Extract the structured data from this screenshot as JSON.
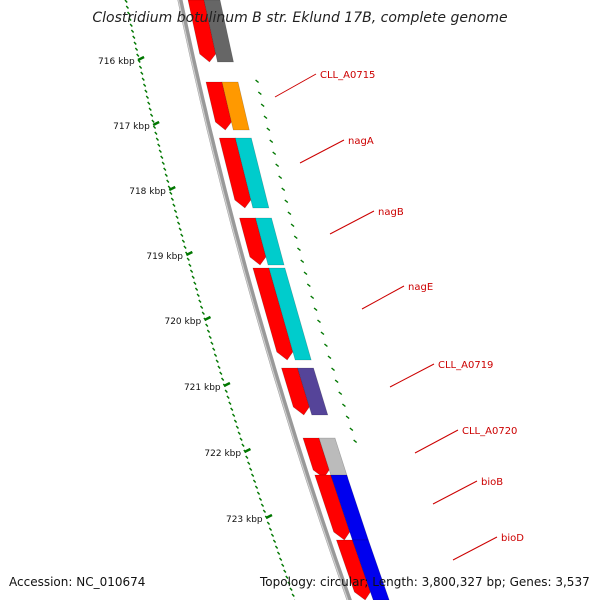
{
  "header": {
    "title": "Clostridium botulinum B str. Eklund 17B, complete genome"
  },
  "footer": {
    "accession_label": "Accession:",
    "accession": "NC_010674",
    "topology_label": "Topology:",
    "topology": "circular",
    "length_label": "Length:",
    "length": "3,800,327 bp",
    "genes_label": "Genes:",
    "genes": "3,537"
  },
  "scale": {
    "ticks": [
      {
        "label": "716 kbp",
        "kbp": 716
      },
      {
        "label": "717 kbp",
        "kbp": 717
      },
      {
        "label": "718 kbp",
        "kbp": 718
      },
      {
        "label": "719 kbp",
        "kbp": 719
      },
      {
        "label": "720 kbp",
        "kbp": 720
      },
      {
        "label": "721 kbp",
        "kbp": 721
      },
      {
        "label": "722 kbp",
        "kbp": 722
      },
      {
        "label": "723 kbp",
        "kbp": 723
      }
    ]
  },
  "colors": {
    "backbone": "#999999",
    "cds_red": "#ff0000",
    "orange": "#ff9900",
    "cyan": "#00cccc",
    "purple": "#554499",
    "gray_light": "#bbbbbb",
    "gray_dark": "#666666",
    "blue": "#0000ee",
    "label_red": "#cc0000",
    "tick_green": "#007700"
  },
  "genes": [
    {
      "label": "",
      "color": "gray_dark"
    },
    {
      "label": "CLL_A0715",
      "color": "orange"
    },
    {
      "label": "nagA",
      "color": "cyan"
    },
    {
      "label": "nagB",
      "color": "cyan"
    },
    {
      "label": "nagE",
      "color": "cyan"
    },
    {
      "label": "CLL_A0719",
      "color": "purple"
    },
    {
      "label": "CLL_A0720",
      "color": "gray_light"
    },
    {
      "label": "bioB",
      "color": "blue"
    },
    {
      "label": "bioD",
      "color": "blue"
    }
  ]
}
